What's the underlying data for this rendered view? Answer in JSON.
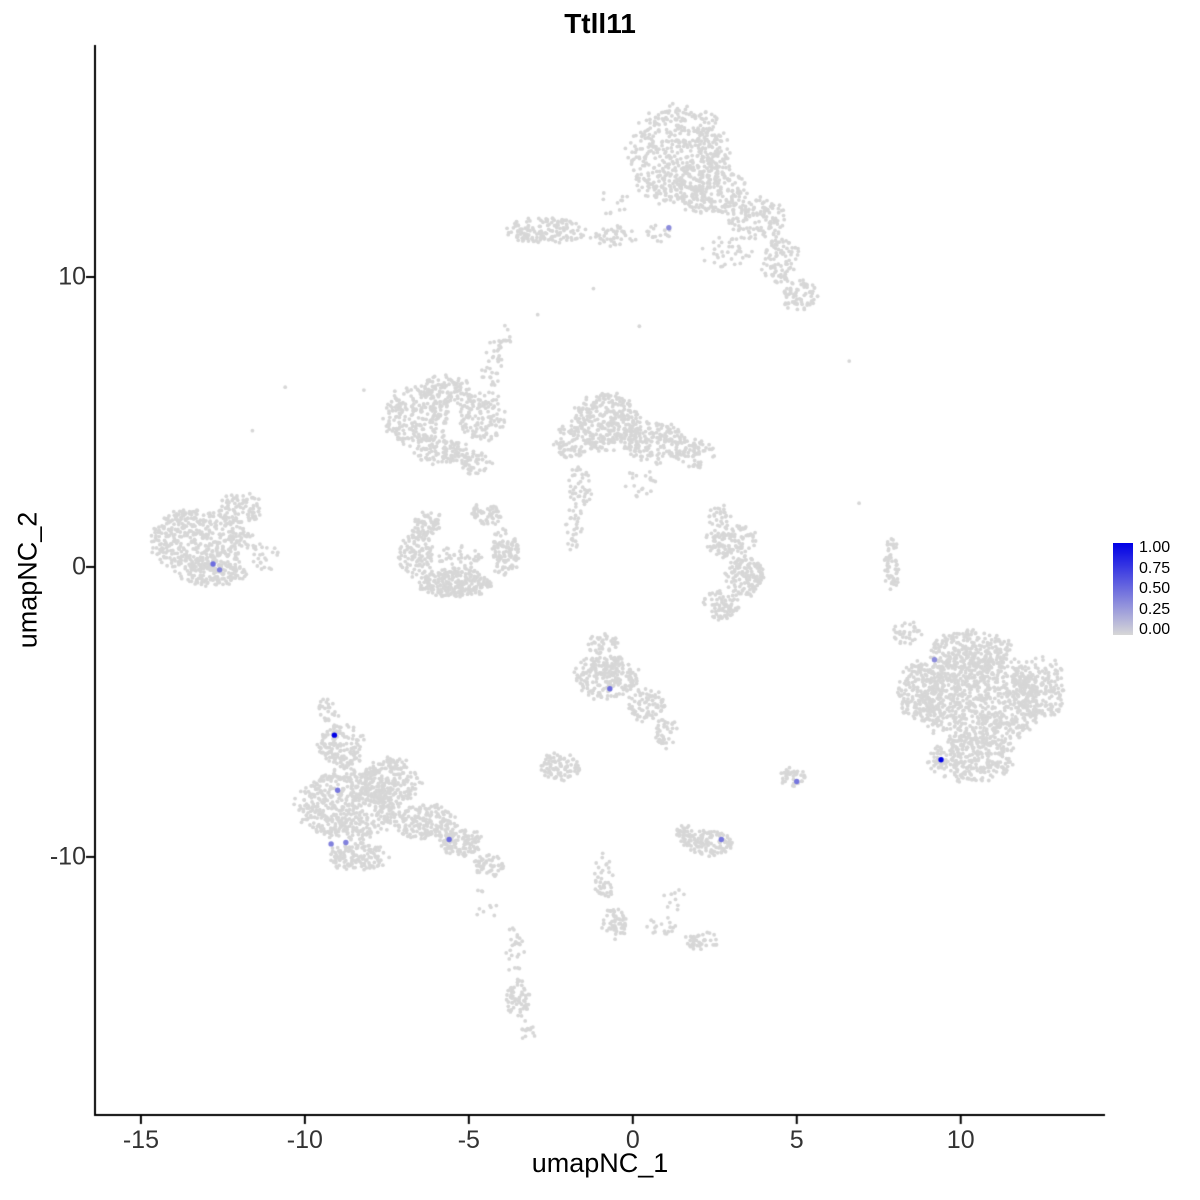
{
  "title": "Ttll11",
  "axes": {
    "x": {
      "label": "umapNC_1",
      "min": -16.4,
      "max": 14.4,
      "ticks": [
        {
          "value": -15,
          "label": "-15"
        },
        {
          "value": -10,
          "label": "-10"
        },
        {
          "value": -5,
          "label": "-5"
        },
        {
          "value": 0,
          "label": "0"
        },
        {
          "value": 5,
          "label": "5"
        },
        {
          "value": 10,
          "label": "10"
        }
      ]
    },
    "y": {
      "label": "umapNC_2",
      "min": -18.9,
      "max": 18.0,
      "ticks": [
        {
          "value": 10,
          "label": "10"
        },
        {
          "value": 0,
          "label": "0"
        },
        {
          "value": -10,
          "label": "-10"
        }
      ]
    }
  },
  "legend": {
    "ticks": [
      "1.00",
      "0.75",
      "0.50",
      "0.25",
      "0.00"
    ],
    "color_high": "#0000E6",
    "color_low": "#D7D7D7"
  },
  "chart_data": {
    "type": "scatter",
    "title": "Ttll11",
    "xlabel": "umapNC_1",
    "ylabel": "umapNC_2",
    "xlim": [
      -16.4,
      14.4
    ],
    "ylim": [
      -18.9,
      18.0
    ],
    "grid": false,
    "legend_position": "right",
    "point_color_low": "#D7D7D7",
    "point_color_high": "#0000E6",
    "value_range": [
      0.0,
      1.0
    ],
    "background_cluster_columns": [
      "cx",
      "cy",
      "rx",
      "ry",
      "n"
    ],
    "background_clusters": [
      [
        1.4,
        14.2,
        1.5,
        1.7,
        550
      ],
      [
        2.4,
        13.0,
        1.1,
        0.9,
        200
      ],
      [
        3.8,
        12.0,
        0.9,
        0.7,
        130
      ],
      [
        4.5,
        10.6,
        0.6,
        0.8,
        90
      ],
      [
        5.1,
        9.4,
        0.55,
        0.55,
        70
      ],
      [
        2.9,
        10.9,
        0.8,
        0.6,
        35
      ],
      [
        -0.6,
        12.6,
        0.5,
        0.5,
        12
      ],
      [
        -2.6,
        11.6,
        1.3,
        0.45,
        150
      ],
      [
        -0.6,
        11.4,
        0.7,
        0.35,
        45
      ],
      [
        0.8,
        11.5,
        0.4,
        0.3,
        18
      ],
      [
        -6.6,
        5.2,
        1.0,
        1.0,
        230
      ],
      [
        -5.7,
        6.1,
        0.8,
        0.5,
        110
      ],
      [
        -4.6,
        5.2,
        0.7,
        0.9,
        130
      ],
      [
        -5.8,
        4.0,
        0.8,
        0.5,
        110
      ],
      [
        -4.8,
        3.6,
        0.5,
        0.4,
        50
      ],
      [
        -4.3,
        7.0,
        0.35,
        0.8,
        35
      ],
      [
        -3.9,
        8.0,
        0.25,
        0.4,
        12
      ],
      [
        -0.8,
        5.0,
        1.05,
        1.0,
        330
      ],
      [
        0.7,
        4.3,
        0.9,
        0.7,
        180
      ],
      [
        1.9,
        3.9,
        0.6,
        0.5,
        70
      ],
      [
        -1.9,
        4.3,
        0.5,
        0.6,
        70
      ],
      [
        -1.6,
        2.7,
        0.35,
        0.8,
        45
      ],
      [
        -1.8,
        1.3,
        0.3,
        0.7,
        30
      ],
      [
        0.2,
        2.9,
        0.5,
        0.5,
        20
      ],
      [
        -6.6,
        0.5,
        0.5,
        0.9,
        120
      ],
      [
        -5.4,
        -0.55,
        1.1,
        0.5,
        260
      ],
      [
        -3.9,
        0.5,
        0.45,
        0.8,
        110
      ],
      [
        -6.2,
        1.5,
        0.45,
        0.4,
        55
      ],
      [
        -4.5,
        1.8,
        0.45,
        0.4,
        55
      ],
      [
        -5.3,
        0.3,
        0.7,
        0.4,
        40
      ],
      [
        -13.2,
        0.9,
        1.5,
        1.1,
        480
      ],
      [
        -12.0,
        2.0,
        0.7,
        0.55,
        90
      ],
      [
        -12.8,
        -0.25,
        1.0,
        0.4,
        130
      ],
      [
        -11.3,
        0.3,
        0.5,
        0.5,
        25
      ],
      [
        3.0,
        0.9,
        0.75,
        0.6,
        120
      ],
      [
        3.4,
        -0.3,
        0.6,
        0.7,
        140
      ],
      [
        2.7,
        -1.3,
        0.55,
        0.5,
        80
      ],
      [
        2.6,
        1.8,
        0.4,
        0.35,
        25
      ],
      [
        7.9,
        0.1,
        0.22,
        0.95,
        55
      ],
      [
        10.6,
        -4.6,
        1.8,
        1.6,
        850
      ],
      [
        10.3,
        -2.9,
        1.3,
        0.7,
        240
      ],
      [
        8.8,
        -4.3,
        0.75,
        1.0,
        200
      ],
      [
        10.3,
        -6.6,
        1.3,
        0.8,
        280
      ],
      [
        12.4,
        -4.2,
        0.8,
        1.1,
        200
      ],
      [
        8.4,
        -2.3,
        0.5,
        0.4,
        35
      ],
      [
        -0.8,
        -3.8,
        0.95,
        0.75,
        240
      ],
      [
        0.4,
        -4.7,
        0.55,
        0.6,
        80
      ],
      [
        1.0,
        -5.7,
        0.35,
        0.55,
        40
      ],
      [
        -0.9,
        -2.7,
        0.5,
        0.4,
        40
      ],
      [
        -2.2,
        -6.9,
        0.6,
        0.5,
        90
      ],
      [
        -8.9,
        -6.2,
        0.7,
        0.8,
        150
      ],
      [
        -8.7,
        -8.2,
        1.5,
        1.2,
        550
      ],
      [
        -7.4,
        -7.4,
        0.9,
        0.8,
        220
      ],
      [
        -6.3,
        -8.8,
        0.95,
        0.6,
        190
      ],
      [
        -5.2,
        -9.5,
        0.65,
        0.45,
        110
      ],
      [
        -4.4,
        -10.3,
        0.45,
        0.4,
        55
      ],
      [
        -8.4,
        -10.0,
        0.9,
        0.5,
        140
      ],
      [
        -9.3,
        -5.0,
        0.4,
        0.45,
        25
      ],
      [
        4.9,
        -7.25,
        0.38,
        0.38,
        40
      ],
      [
        2.3,
        -9.5,
        0.75,
        0.45,
        110
      ],
      [
        1.6,
        -9.2,
        0.35,
        0.3,
        30
      ],
      [
        -0.9,
        -10.7,
        0.3,
        0.8,
        40
      ],
      [
        -0.55,
        -12.3,
        0.4,
        0.55,
        55
      ],
      [
        0.9,
        -12.4,
        0.5,
        0.35,
        18
      ],
      [
        2.1,
        -12.9,
        0.5,
        0.3,
        40
      ],
      [
        1.3,
        -11.5,
        0.4,
        0.4,
        10
      ],
      [
        -3.6,
        -13.2,
        0.3,
        0.8,
        25
      ],
      [
        -3.5,
        -14.9,
        0.4,
        0.65,
        60
      ],
      [
        -3.2,
        -16.0,
        0.25,
        0.35,
        14
      ],
      [
        -4.5,
        -11.6,
        0.4,
        0.5,
        10
      ]
    ],
    "outlier_points": [
      [
        6.6,
        7.1
      ],
      [
        -10.6,
        6.2
      ],
      [
        0.2,
        8.3
      ],
      [
        -2.9,
        8.7
      ],
      [
        -8.2,
        6.1
      ],
      [
        -11.6,
        4.7
      ],
      [
        -1.2,
        9.6
      ],
      [
        6.9,
        2.2
      ]
    ],
    "expressing_cells": [
      {
        "x": 1.1,
        "y": 11.7,
        "value": 0.35
      },
      {
        "x": -12.8,
        "y": 0.1,
        "value": 0.5
      },
      {
        "x": -12.6,
        "y": -0.1,
        "value": 0.4
      },
      {
        "x": 9.2,
        "y": -3.2,
        "value": 0.35
      },
      {
        "x": 9.4,
        "y": -6.65,
        "value": 1.0
      },
      {
        "x": -0.7,
        "y": -4.2,
        "value": 0.5
      },
      {
        "x": -9.1,
        "y": -5.8,
        "value": 1.0
      },
      {
        "x": -9.0,
        "y": -7.7,
        "value": 0.45
      },
      {
        "x": -9.2,
        "y": -9.55,
        "value": 0.4
      },
      {
        "x": -8.75,
        "y": -9.5,
        "value": 0.4
      },
      {
        "x": -5.6,
        "y": -9.4,
        "value": 0.5
      },
      {
        "x": 5.0,
        "y": -7.4,
        "value": 0.45
      },
      {
        "x": 2.7,
        "y": -9.4,
        "value": 0.45
      }
    ]
  }
}
